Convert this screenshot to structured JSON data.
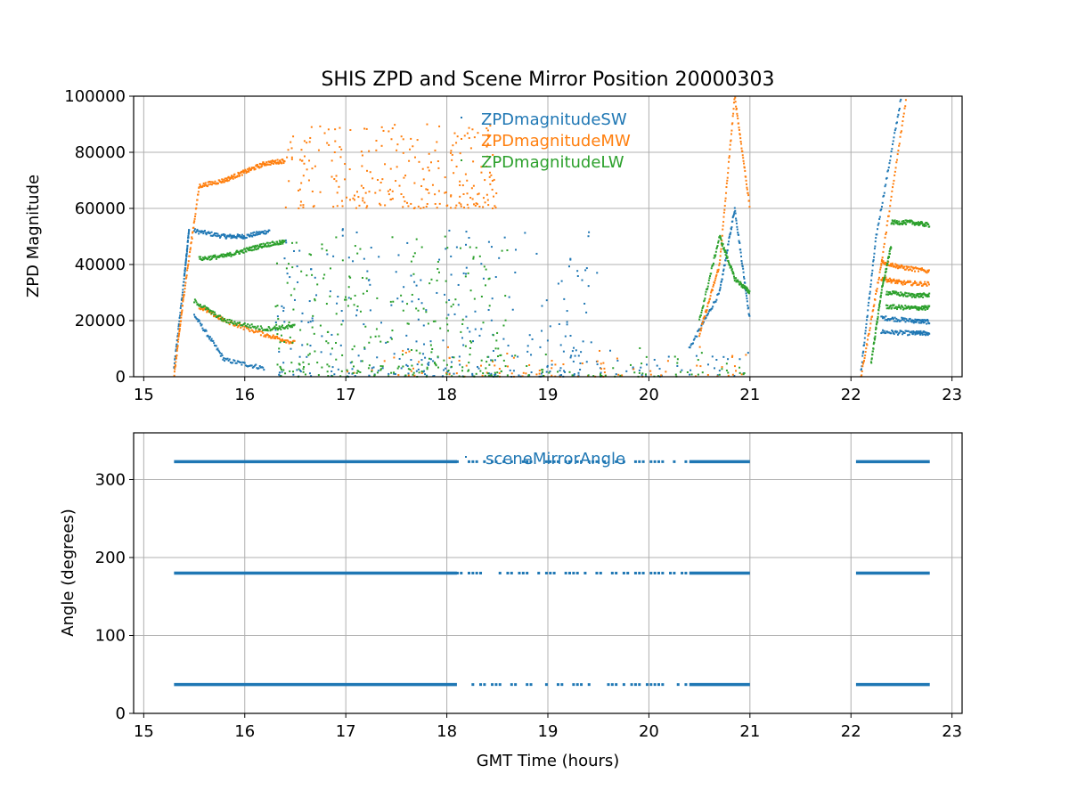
{
  "chart_data": [
    {
      "type": "scatter",
      "title": "SHIS ZPD and Scene Mirror Position 20000303",
      "xlabel": "",
      "ylabel": "ZPD Magnitude",
      "xlim": [
        14.9,
        23.1
      ],
      "ylim": [
        0,
        100000
      ],
      "xticks": [
        15,
        16,
        17,
        18,
        19,
        20,
        21,
        22,
        23
      ],
      "yticks": [
        0,
        20000,
        40000,
        60000,
        80000,
        100000
      ],
      "grid": true,
      "legend_position": "top-center",
      "series": [
        {
          "name": "ZPDmagnitudeSW",
          "color": "#1f77b4",
          "segments": [
            {
              "x": [
                15.3,
                15.4,
                15.45
              ],
              "y": [
                3000,
                35000,
                53000
              ]
            },
            {
              "x": [
                15.5,
                15.8,
                16.0,
                16.25
              ],
              "y": [
                52000,
                50000,
                50000,
                52000
              ]
            },
            {
              "x": [
                15.5,
                15.8,
                16.2
              ],
              "y": [
                22000,
                6000,
                3000
              ]
            },
            {
              "x": [
                20.4,
                20.7,
                20.85,
                21.0
              ],
              "y": [
                10000,
                30000,
                60000,
                20000
              ]
            },
            {
              "x": [
                22.1,
                22.25,
                22.5
              ],
              "y": [
                2000,
                50000,
                100000
              ]
            },
            {
              "x": [
                22.3,
                22.6,
                22.78
              ],
              "y": [
                21000,
                20000,
                19500
              ]
            },
            {
              "x": [
                22.3,
                22.6,
                22.78
              ],
              "y": [
                16000,
                15500,
                15500
              ]
            }
          ],
          "scatter_region": {
            "x": [
              16.3,
              19.5
            ],
            "y": [
              0,
              55000
            ]
          }
        },
        {
          "name": "ZPDmagnitudeMW",
          "color": "#ff7f0e",
          "segments": [
            {
              "x": [
                15.3,
                15.4,
                15.55
              ],
              "y": [
                0,
                30000,
                68000
              ]
            },
            {
              "x": [
                15.55,
                15.8,
                16.0,
                16.2,
                16.4
              ],
              "y": [
                68000,
                70000,
                73000,
                76000,
                77000
              ]
            },
            {
              "x": [
                15.55,
                15.8,
                16.2,
                16.5
              ],
              "y": [
                25000,
                20000,
                15000,
                12000
              ]
            },
            {
              "x": [
                20.5,
                20.7,
                20.85,
                21.0
              ],
              "y": [
                15000,
                40000,
                100000,
                60000
              ]
            },
            {
              "x": [
                22.1,
                22.3,
                22.55
              ],
              "y": [
                0,
                40000,
                100000
              ]
            },
            {
              "x": [
                22.3,
                22.5,
                22.78
              ],
              "y": [
                41000,
                39000,
                37500
              ]
            },
            {
              "x": [
                22.3,
                22.5,
                22.78
              ],
              "y": [
                35000,
                33500,
                33000
              ]
            }
          ],
          "scatter_region": {
            "x": [
              16.4,
              18.5
            ],
            "y": [
              60000,
              90000
            ]
          }
        },
        {
          "name": "ZPDmagnitudeLW",
          "color": "#2ca02c",
          "segments": [
            {
              "x": [
                15.55,
                15.8,
                16.0,
                16.2,
                16.4
              ],
              "y": [
                42000,
                43000,
                45000,
                47000,
                48000
              ]
            },
            {
              "x": [
                15.5,
                15.8,
                16.2,
                16.5
              ],
              "y": [
                27000,
                20000,
                17000,
                18000
              ]
            },
            {
              "x": [
                20.5,
                20.7,
                20.85,
                21.0
              ],
              "y": [
                20000,
                50000,
                35000,
                30000
              ]
            },
            {
              "x": [
                22.2,
                22.3,
                22.4
              ],
              "y": [
                5000,
                30000,
                47000
              ]
            },
            {
              "x": [
                22.4,
                22.6,
                22.78
              ],
              "y": [
                55000,
                55000,
                54000
              ]
            },
            {
              "x": [
                22.35,
                22.6,
                22.78
              ],
              "y": [
                30000,
                29000,
                29000
              ]
            },
            {
              "x": [
                22.35,
                22.6,
                22.78
              ],
              "y": [
                25000,
                24500,
                24500
              ]
            }
          ],
          "scatter_region": {
            "x": [
              16.3,
              18.6
            ],
            "y": [
              0,
              50000
            ]
          }
        }
      ]
    },
    {
      "type": "scatter",
      "title": "",
      "xlabel": "GMT Time (hours)",
      "ylabel": "Angle (degrees)",
      "xlim": [
        14.9,
        23.1
      ],
      "ylim": [
        0,
        360
      ],
      "xticks": [
        15,
        16,
        17,
        18,
        19,
        20,
        21,
        22,
        23
      ],
      "yticks": [
        0,
        100,
        200,
        300
      ],
      "grid": true,
      "legend_position": "top-center",
      "series": [
        {
          "name": "sceneMirrorAngle",
          "color": "#1f77b4",
          "levels": [
            37,
            180,
            323
          ],
          "dense_ranges": [
            [
              15.3,
              18.1
            ],
            [
              20.4,
              21.0
            ],
            [
              22.05,
              22.78
            ]
          ],
          "sparse_range": [
            18.1,
            20.4
          ]
        }
      ]
    }
  ]
}
